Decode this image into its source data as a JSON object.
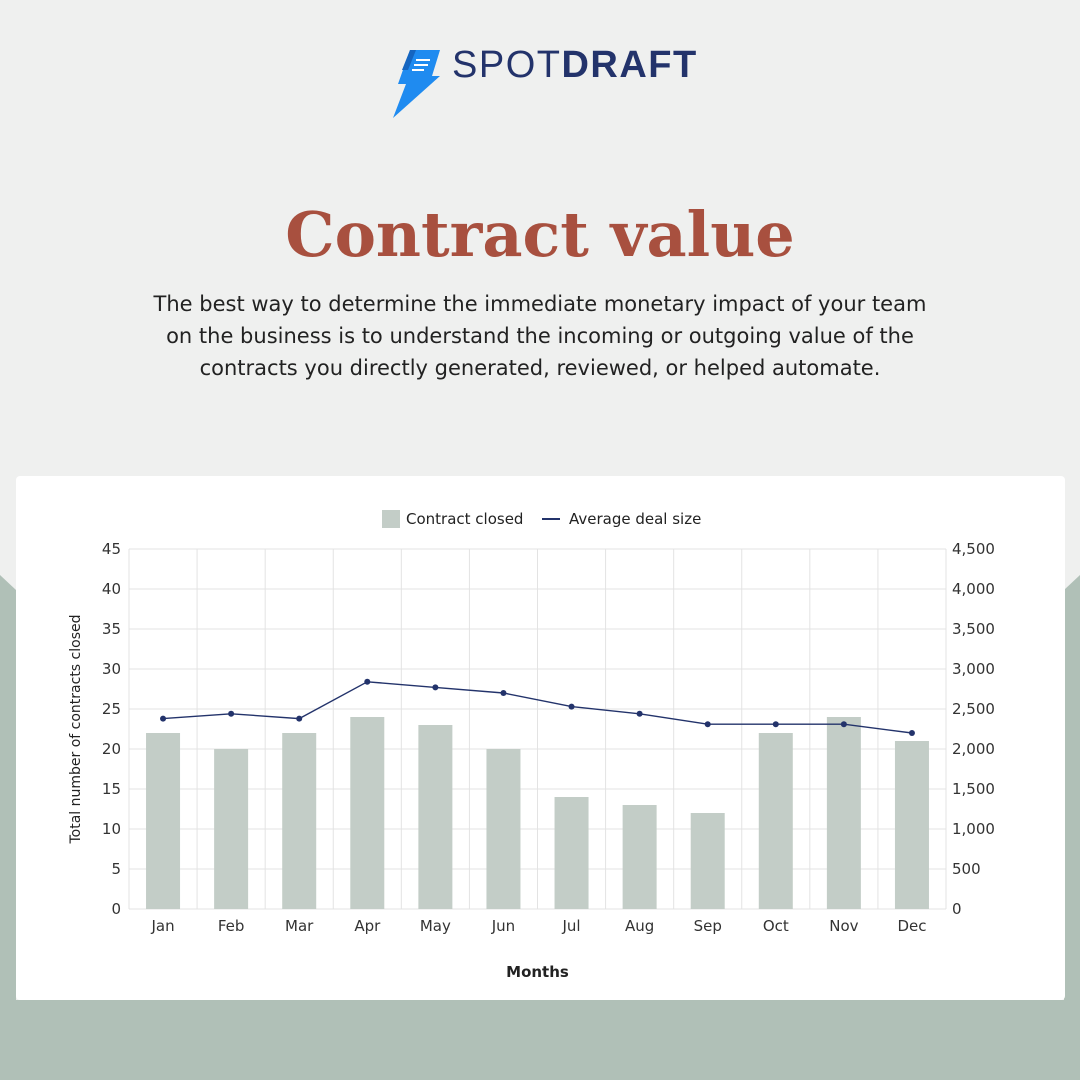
{
  "brand": {
    "name_light": "SPOT",
    "name_bold": "DRAFT",
    "colors": {
      "navy": "#23336b",
      "blue": "#1f8bf0",
      "title": "#a8503f"
    }
  },
  "heading": "Contract value",
  "description": "The best way to determine the immediate monetary impact of your team on the business is to understand the incoming or outgoing value of the contracts you directly generated, reviewed, or helped automate.",
  "chart_data": {
    "type": "bar",
    "categories": [
      "Jan",
      "Feb",
      "Mar",
      "Apr",
      "May",
      "Jun",
      "Jul",
      "Aug",
      "Sep",
      "Oct",
      "Nov",
      "Dec"
    ],
    "series": [
      {
        "name": "Contract closed",
        "type": "bar",
        "axis": "left",
        "color": "#c3cdc7",
        "values": [
          22,
          20,
          22,
          24,
          23,
          20,
          14,
          13,
          12,
          22,
          24,
          21
        ]
      },
      {
        "name": "Average deal size",
        "type": "line",
        "axis": "right",
        "color": "#23336b",
        "values": [
          2380,
          2440,
          2380,
          2840,
          2770,
          2700,
          2530,
          2440,
          2310,
          2310,
          2310,
          2200
        ]
      }
    ],
    "xlabel": "Months",
    "ylabel": "Total number of contracts closed",
    "ylim": [
      0,
      45
    ],
    "y_ticks": [
      "0",
      "5",
      "10",
      "15",
      "20",
      "25",
      "30",
      "35",
      "40",
      "45"
    ],
    "y2lim": [
      0,
      4500
    ],
    "y2_ticks": [
      "0",
      "500",
      "1,000",
      "1,500",
      "2,000",
      "2,500",
      "3,000",
      "3,500",
      "4,000",
      "4,500"
    ],
    "grid": true,
    "legend_position": "top-center"
  }
}
